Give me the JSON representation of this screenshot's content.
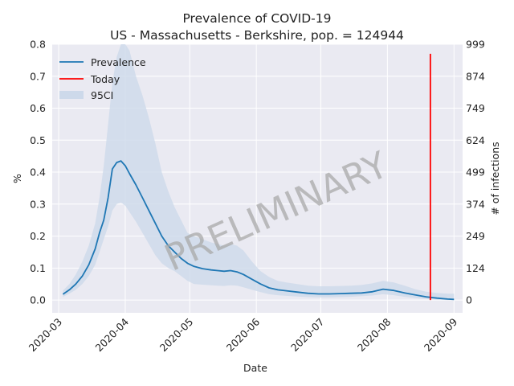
{
  "chart_data": {
    "type": "line",
    "title": "Prevalence of COVID-19",
    "subtitle": "US - Massachusetts - Berkshire, pop. = 124944",
    "xlabel": "Date",
    "ylabel": "%",
    "y2label": "# of infections",
    "watermark": "PRELIMINARY",
    "xlim": [
      "2020-02-27",
      "2020-09-05"
    ],
    "ylim": [
      -0.04,
      0.8
    ],
    "x_ticks": [
      "2020-03",
      "2020-04",
      "2020-05",
      "2020-06",
      "2020-07",
      "2020-08",
      "2020-09"
    ],
    "y_ticks": [
      0.0,
      0.1,
      0.2,
      0.3,
      0.4,
      0.5,
      0.6,
      0.7,
      0.8
    ],
    "y_tick_labels": [
      "0.0",
      "0.1",
      "0.2",
      "0.3",
      "0.4",
      "0.5",
      "0.6",
      "0.7",
      "0.8"
    ],
    "y2_ticks": [
      0,
      124,
      249,
      374,
      499,
      624,
      749,
      874,
      999
    ],
    "grid": true,
    "legend_position": "top-left",
    "legend": [
      "Prevalence",
      "Today",
      "95CI"
    ],
    "today": {
      "date": "2020-08-21",
      "y_top": 0.77
    },
    "colors": {
      "prevalence": "#1f77b4",
      "today": "#ff0000",
      "ci": "#cdd9ea",
      "background": "#eaeaf2"
    },
    "series": [
      {
        "name": "Prevalence",
        "x": [
          "2020-03-03",
          "2020-03-06",
          "2020-03-09",
          "2020-03-12",
          "2020-03-15",
          "2020-03-18",
          "2020-03-20",
          "2020-03-22",
          "2020-03-24",
          "2020-03-26",
          "2020-03-28",
          "2020-03-30",
          "2020-04-01",
          "2020-04-03",
          "2020-04-06",
          "2020-04-09",
          "2020-04-12",
          "2020-04-15",
          "2020-04-18",
          "2020-04-21",
          "2020-04-24",
          "2020-04-27",
          "2020-04-30",
          "2020-05-03",
          "2020-05-07",
          "2020-05-11",
          "2020-05-14",
          "2020-05-17",
          "2020-05-20",
          "2020-05-23",
          "2020-05-26",
          "2020-05-30",
          "2020-06-03",
          "2020-06-07",
          "2020-06-11",
          "2020-06-15",
          "2020-06-20",
          "2020-06-25",
          "2020-06-30",
          "2020-07-05",
          "2020-07-10",
          "2020-07-15",
          "2020-07-20",
          "2020-07-25",
          "2020-07-30",
          "2020-08-04",
          "2020-08-09",
          "2020-08-14",
          "2020-08-19",
          "2020-08-24",
          "2020-08-29",
          "2020-09-01"
        ],
        "y": [
          0.018,
          0.032,
          0.05,
          0.075,
          0.11,
          0.16,
          0.21,
          0.25,
          0.32,
          0.41,
          0.43,
          0.435,
          0.42,
          0.395,
          0.36,
          0.32,
          0.28,
          0.24,
          0.2,
          0.17,
          0.15,
          0.13,
          0.115,
          0.105,
          0.098,
          0.094,
          0.092,
          0.09,
          0.092,
          0.088,
          0.08,
          0.065,
          0.05,
          0.038,
          0.032,
          0.029,
          0.025,
          0.021,
          0.019,
          0.019,
          0.02,
          0.021,
          0.022,
          0.026,
          0.034,
          0.03,
          0.022,
          0.016,
          0.01,
          0.006,
          0.003,
          0.002
        ]
      },
      {
        "name": "95CI",
        "x": [
          "2020-03-03",
          "2020-03-06",
          "2020-03-09",
          "2020-03-12",
          "2020-03-15",
          "2020-03-18",
          "2020-03-20",
          "2020-03-22",
          "2020-03-24",
          "2020-03-26",
          "2020-03-28",
          "2020-03-30",
          "2020-04-01",
          "2020-04-03",
          "2020-04-06",
          "2020-04-09",
          "2020-04-12",
          "2020-04-15",
          "2020-04-18",
          "2020-04-21",
          "2020-04-24",
          "2020-04-27",
          "2020-04-30",
          "2020-05-03",
          "2020-05-07",
          "2020-05-11",
          "2020-05-14",
          "2020-05-17",
          "2020-05-20",
          "2020-05-23",
          "2020-05-26",
          "2020-05-30",
          "2020-06-03",
          "2020-06-07",
          "2020-06-11",
          "2020-06-15",
          "2020-06-20",
          "2020-06-25",
          "2020-06-30",
          "2020-07-05",
          "2020-07-10",
          "2020-07-15",
          "2020-07-20",
          "2020-07-25",
          "2020-07-30",
          "2020-08-04",
          "2020-08-09",
          "2020-08-14",
          "2020-08-19",
          "2020-08-24",
          "2020-08-29",
          "2020-09-01"
        ],
        "lower": [
          0.01,
          0.02,
          0.032,
          0.05,
          0.075,
          0.11,
          0.15,
          0.19,
          0.23,
          0.28,
          0.3,
          0.305,
          0.295,
          0.275,
          0.245,
          0.21,
          0.175,
          0.14,
          0.115,
          0.1,
          0.09,
          0.075,
          0.06,
          0.05,
          0.048,
          0.046,
          0.045,
          0.044,
          0.046,
          0.045,
          0.04,
          0.032,
          0.025,
          0.018,
          0.015,
          0.013,
          0.011,
          0.009,
          0.008,
          0.008,
          0.009,
          0.01,
          0.012,
          0.014,
          0.018,
          0.015,
          0.01,
          0.006,
          0.003,
          0.001,
          0.0,
          0.0
        ],
        "upper": [
          0.03,
          0.05,
          0.08,
          0.12,
          0.17,
          0.24,
          0.32,
          0.42,
          0.55,
          0.68,
          0.76,
          0.8,
          0.8,
          0.78,
          0.7,
          0.64,
          0.57,
          0.49,
          0.4,
          0.34,
          0.29,
          0.25,
          0.21,
          0.2,
          0.19,
          0.18,
          0.175,
          0.17,
          0.175,
          0.17,
          0.155,
          0.12,
          0.09,
          0.072,
          0.06,
          0.055,
          0.05,
          0.045,
          0.043,
          0.043,
          0.044,
          0.045,
          0.047,
          0.052,
          0.06,
          0.055,
          0.045,
          0.034,
          0.026,
          0.022,
          0.02,
          0.02
        ]
      }
    ]
  }
}
